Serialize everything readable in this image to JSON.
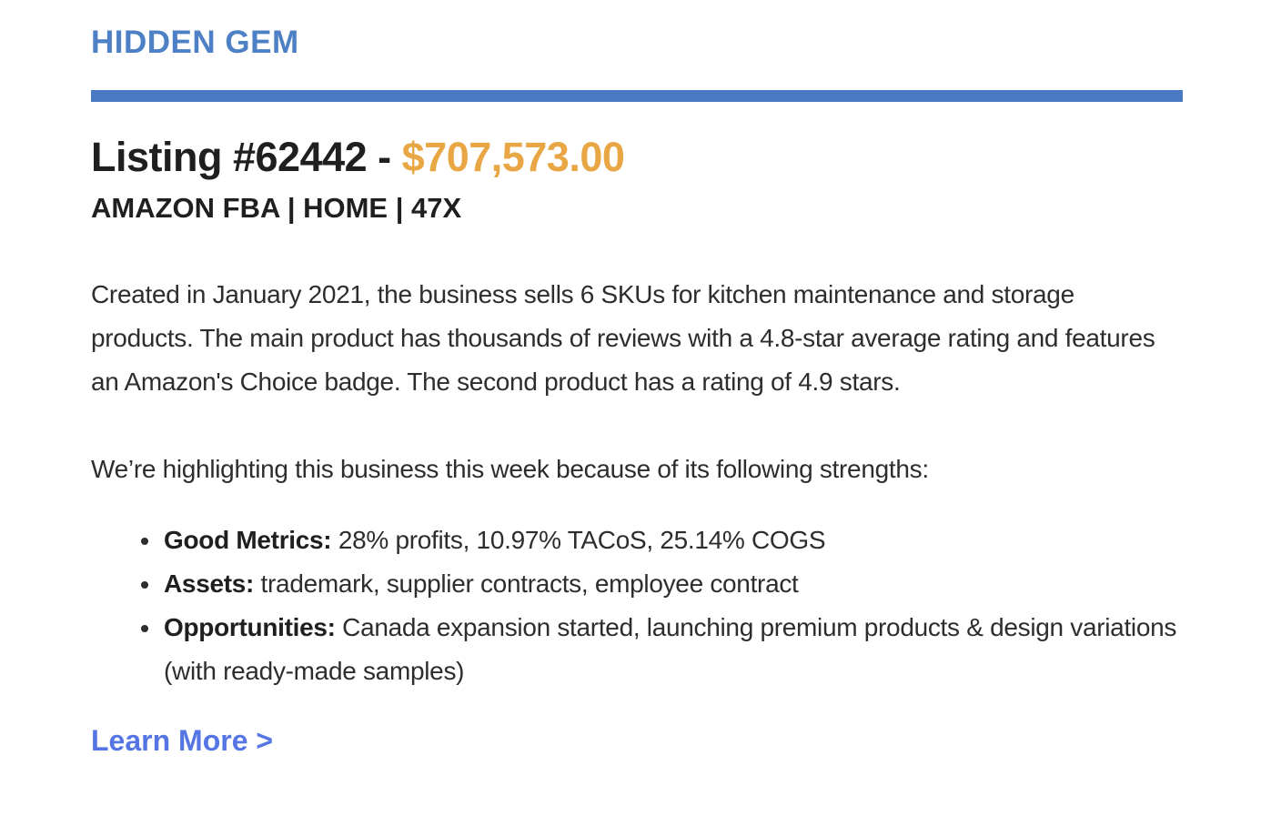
{
  "colors": {
    "eyebrow_blue": "#4d80c4",
    "divider_blue": "#4a79c4",
    "price_orange": "#e9a645",
    "link_blue": "#5575e5",
    "title_black": "#1f1f1f",
    "body_gray": "#2d2d2d"
  },
  "header": {
    "eyebrow": "HIDDEN GEM"
  },
  "listing": {
    "title_prefix": "Listing #62442 - ",
    "price": "$707,573.00",
    "subtitle": "AMAZON FBA | HOME | 47X"
  },
  "body": {
    "paragraph_1": "Created in January 2021, the business sells 6 SKUs for kitchen maintenance and storage products. The main product has thousands of reviews with a 4.8-star average rating and features an Amazon's Choice badge. The second product has a rating of 4.9 stars.",
    "paragraph_2": "We’re highlighting this business this week because of its following strengths:"
  },
  "strengths": [
    {
      "label": "Good Metrics:",
      "text": " 28% profits, 10.97% TACoS, 25.14% COGS"
    },
    {
      "label": "Assets:",
      "text": " trademark, supplier contracts, employee contract"
    },
    {
      "label": "Opportunities:",
      "text": " Canada expansion started, launching premium products & design variations (with ready-made samples)"
    }
  ],
  "footer": {
    "link_label": "Learn More >"
  }
}
